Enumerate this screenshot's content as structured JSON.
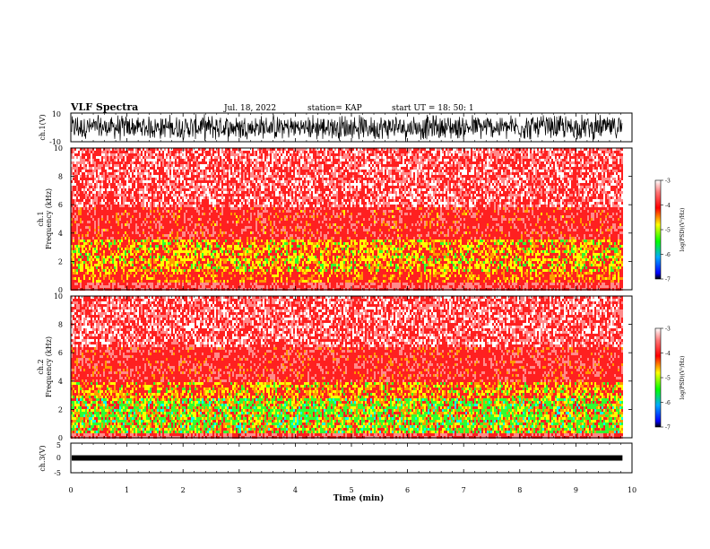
{
  "header": {
    "title": "VLF Spectra",
    "date": "Jul. 18, 2022",
    "station": "station= KAP",
    "start": "start UT = 18: 50: 1"
  },
  "chart_data": [
    {
      "type": "line",
      "name": "ch1-waveform",
      "ylabel": "ch.1(V)",
      "ylim": [
        -10,
        10
      ],
      "yticks": [
        "10",
        "-10"
      ],
      "xlim": [
        0,
        10
      ],
      "data_end_min": 9.83
    },
    {
      "type": "heatmap",
      "name": "ch1-spectrogram",
      "ylabel": "ch.1 Frequency (kHz)",
      "ylim": [
        0,
        10
      ],
      "yticks": [
        "0",
        "2",
        "4",
        "6",
        "8",
        "10"
      ],
      "xlim": [
        0,
        10
      ],
      "colorbar": {
        "label": "log(PSD)(V²/Hz)",
        "range": [
          -7,
          -3
        ],
        "ticks": [
          "-3",
          "-4",
          "-5",
          "-6",
          "-7"
        ]
      }
    },
    {
      "type": "heatmap",
      "name": "ch2-spectrogram",
      "ylabel": "ch.2 Frequency (kHz)",
      "ylim": [
        0,
        10
      ],
      "yticks": [
        "0",
        "2",
        "4",
        "6",
        "8",
        "10"
      ],
      "xlim": [
        0,
        10
      ],
      "colorbar": {
        "label": "log(PSD)(V²/Hz)",
        "range": [
          -7,
          -3
        ],
        "ticks": [
          "-3",
          "-4",
          "-5",
          "-6",
          "-7"
        ]
      }
    },
    {
      "type": "line",
      "name": "ch3-waveform",
      "ylabel": "ch.3(V)",
      "ylim": [
        -5,
        5
      ],
      "yticks": [
        "5",
        "0",
        "-5"
      ],
      "xlim": [
        0,
        10
      ],
      "data_end_min": 9.83
    }
  ],
  "xaxis": {
    "label": "Time (min)",
    "ticks": [
      "0",
      "1",
      "2",
      "3",
      "4",
      "5",
      "6",
      "7",
      "8",
      "9",
      "10"
    ]
  }
}
